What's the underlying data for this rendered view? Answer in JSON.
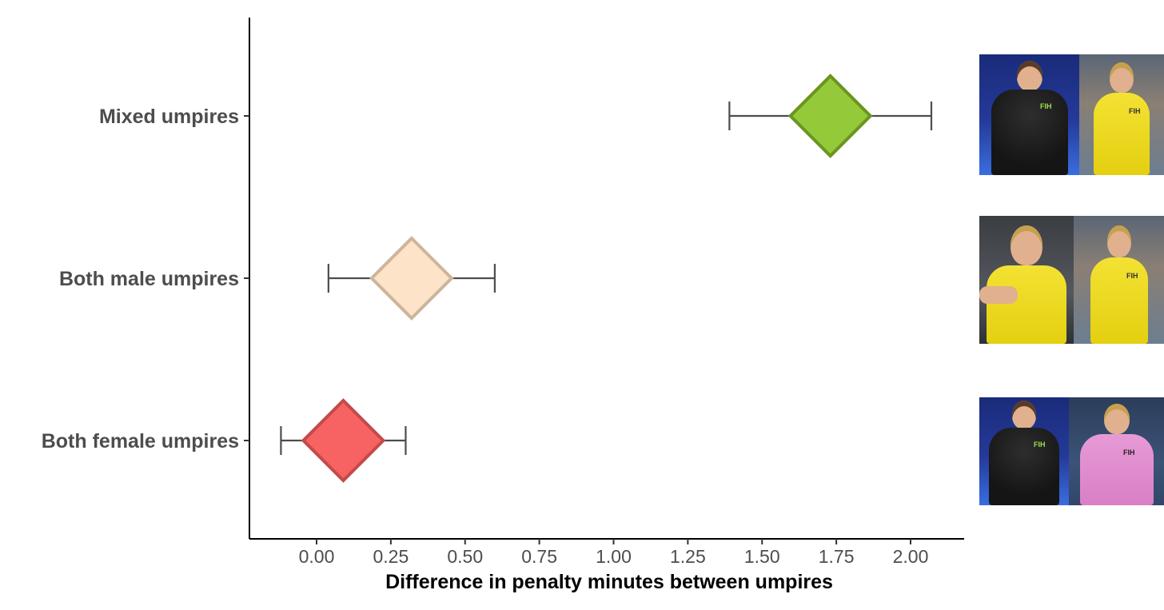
{
  "chart_data": {
    "type": "scatter",
    "xlabel": "Difference in penalty minutes between umpires",
    "xlim": [
      -0.22,
      2.2
    ],
    "xticks": [
      "0.00",
      "0.25",
      "0.50",
      "0.75",
      "1.00",
      "1.25",
      "1.50",
      "1.75",
      "2.00"
    ],
    "categories": [
      "Mixed umpires",
      "Both male umpires",
      "Both female umpires"
    ],
    "points": [
      {
        "category": "Mixed umpires",
        "estimate": 1.73,
        "lower": 1.39,
        "upper": 2.07,
        "fill": "#94c93a",
        "stroke": "#6b9420"
      },
      {
        "category": "Both male umpires",
        "estimate": 0.32,
        "lower": 0.04,
        "upper": 0.6,
        "fill": "#fde3c8",
        "stroke": "#cdb59b"
      },
      {
        "category": "Both female umpires",
        "estimate": 0.09,
        "lower": -0.12,
        "upper": 0.3,
        "fill": "#f76262",
        "stroke": "#c44a4a"
      }
    ],
    "grid": false,
    "legend": "none"
  },
  "photos": {
    "mixed": [
      "female umpire in black shirt",
      "male umpire in yellow shirt"
    ],
    "male": [
      "male umpire in yellow shirt",
      "male umpire in yellow shirt"
    ],
    "female": [
      "female umpire in black shirt",
      "female umpire in pink shirt"
    ],
    "shirt_logo": "FIH"
  }
}
